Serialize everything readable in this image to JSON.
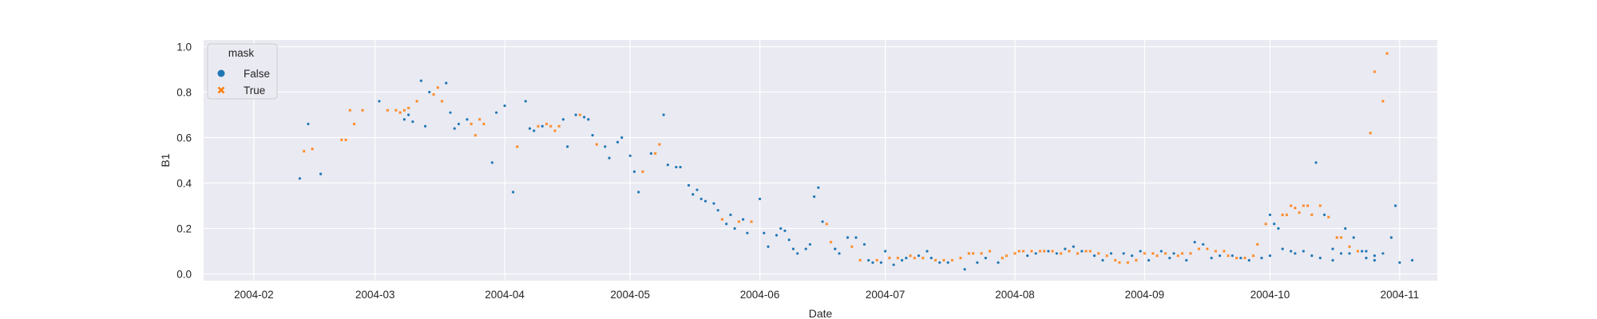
{
  "chart_data": {
    "type": "scatter",
    "xlabel": "Date",
    "ylabel": "B1",
    "xlim": [
      "2004-01-20",
      "2004-11-10"
    ],
    "ylim": [
      -0.03,
      1.03
    ],
    "x_ticks": [
      "2004-02",
      "2004-03",
      "2004-04",
      "2004-05",
      "2004-06",
      "2004-07",
      "2004-08",
      "2004-09",
      "2004-10",
      "2004-11"
    ],
    "y_ticks": [
      "0.0",
      "0.2",
      "0.4",
      "0.6",
      "0.8",
      "1.0"
    ],
    "grid": true,
    "legend": {
      "title": "mask",
      "placement": "top-left",
      "entries": [
        {
          "label": "False",
          "marker": "circle",
          "color": "#1f77b4"
        },
        {
          "label": "True",
          "marker": "x",
          "color": "#ff7f0e"
        }
      ]
    },
    "colors": {
      "background": "#eaeaf2",
      "grid": "#ffffff",
      "false": "#1f77b4",
      "true": "#ff7f0e"
    },
    "series": [
      {
        "name": "False",
        "color": "#1f77b4",
        "points": [
          [
            "2004-02-12",
            0.42
          ],
          [
            "2004-02-14",
            0.66
          ],
          [
            "2004-02-17",
            0.44
          ],
          [
            "2004-03-02",
            0.76
          ],
          [
            "2004-03-08",
            0.68
          ],
          [
            "2004-03-09",
            0.7
          ],
          [
            "2004-03-10",
            0.67
          ],
          [
            "2004-03-12",
            0.85
          ],
          [
            "2004-03-13",
            0.65
          ],
          [
            "2004-03-14",
            0.8
          ],
          [
            "2004-03-18",
            0.84
          ],
          [
            "2004-03-19",
            0.71
          ],
          [
            "2004-03-20",
            0.64
          ],
          [
            "2004-03-21",
            0.66
          ],
          [
            "2004-03-23",
            0.68
          ],
          [
            "2004-03-29",
            0.49
          ],
          [
            "2004-03-30",
            0.71
          ],
          [
            "2004-04-01",
            0.74
          ],
          [
            "2004-04-03",
            0.36
          ],
          [
            "2004-04-06",
            0.76
          ],
          [
            "2004-04-07",
            0.64
          ],
          [
            "2004-04-08",
            0.63
          ],
          [
            "2004-04-10",
            0.65
          ],
          [
            "2004-04-15",
            0.68
          ],
          [
            "2004-04-16",
            0.56
          ],
          [
            "2004-04-18",
            0.7
          ],
          [
            "2004-04-20",
            0.69
          ],
          [
            "2004-04-21",
            0.68
          ],
          [
            "2004-04-22",
            0.61
          ],
          [
            "2004-04-25",
            0.56
          ],
          [
            "2004-04-26",
            0.51
          ],
          [
            "2004-04-28",
            0.58
          ],
          [
            "2004-04-29",
            0.6
          ],
          [
            "2004-05-01",
            0.52
          ],
          [
            "2004-05-02",
            0.45
          ],
          [
            "2004-05-03",
            0.36
          ],
          [
            "2004-05-06",
            0.53
          ],
          [
            "2004-05-09",
            0.7
          ],
          [
            "2004-05-10",
            0.48
          ],
          [
            "2004-05-12",
            0.47
          ],
          [
            "2004-05-13",
            0.47
          ],
          [
            "2004-05-15",
            0.39
          ],
          [
            "2004-05-16",
            0.35
          ],
          [
            "2004-05-17",
            0.37
          ],
          [
            "2004-05-18",
            0.33
          ],
          [
            "2004-05-19",
            0.32
          ],
          [
            "2004-05-21",
            0.31
          ],
          [
            "2004-05-22",
            0.28
          ],
          [
            "2004-05-24",
            0.22
          ],
          [
            "2004-05-25",
            0.26
          ],
          [
            "2004-05-26",
            0.2
          ],
          [
            "2004-05-28",
            0.24
          ],
          [
            "2004-05-29",
            0.18
          ],
          [
            "2004-06-01",
            0.33
          ],
          [
            "2004-06-02",
            0.18
          ],
          [
            "2004-06-03",
            0.12
          ],
          [
            "2004-06-05",
            0.17
          ],
          [
            "2004-06-06",
            0.2
          ],
          [
            "2004-06-07",
            0.19
          ],
          [
            "2004-06-08",
            0.15
          ],
          [
            "2004-06-09",
            0.11
          ],
          [
            "2004-06-10",
            0.09
          ],
          [
            "2004-06-12",
            0.11
          ],
          [
            "2004-06-13",
            0.13
          ],
          [
            "2004-06-14",
            0.34
          ],
          [
            "2004-06-15",
            0.38
          ],
          [
            "2004-06-16",
            0.23
          ],
          [
            "2004-06-19",
            0.11
          ],
          [
            "2004-06-20",
            0.09
          ],
          [
            "2004-06-22",
            0.16
          ],
          [
            "2004-06-24",
            0.16
          ],
          [
            "2004-06-26",
            0.13
          ],
          [
            "2004-06-27",
            0.06
          ],
          [
            "2004-06-28",
            0.05
          ],
          [
            "2004-06-30",
            0.05
          ],
          [
            "2004-07-01",
            0.1
          ],
          [
            "2004-07-03",
            0.04
          ],
          [
            "2004-07-05",
            0.06
          ],
          [
            "2004-07-06",
            0.07
          ],
          [
            "2004-07-09",
            0.08
          ],
          [
            "2004-07-11",
            0.1
          ],
          [
            "2004-07-12",
            0.07
          ],
          [
            "2004-07-14",
            0.05
          ],
          [
            "2004-07-16",
            0.05
          ],
          [
            "2004-07-20",
            0.02
          ],
          [
            "2004-07-23",
            0.05
          ],
          [
            "2004-07-25",
            0.07
          ],
          [
            "2004-07-28",
            0.05
          ],
          [
            "2004-08-04",
            0.08
          ],
          [
            "2004-08-06",
            0.09
          ],
          [
            "2004-08-09",
            0.1
          ],
          [
            "2004-08-11",
            0.09
          ],
          [
            "2004-08-13",
            0.11
          ],
          [
            "2004-08-15",
            0.12
          ],
          [
            "2004-08-17",
            0.1
          ],
          [
            "2004-08-20",
            0.08
          ],
          [
            "2004-08-22",
            0.06
          ],
          [
            "2004-08-24",
            0.09
          ],
          [
            "2004-08-27",
            0.09
          ],
          [
            "2004-08-29",
            0.08
          ],
          [
            "2004-08-31",
            0.1
          ],
          [
            "2004-09-02",
            0.06
          ],
          [
            "2004-09-05",
            0.1
          ],
          [
            "2004-09-07",
            0.07
          ],
          [
            "2004-09-08",
            0.09
          ],
          [
            "2004-09-11",
            0.06
          ],
          [
            "2004-09-13",
            0.14
          ],
          [
            "2004-09-15",
            0.13
          ],
          [
            "2004-09-17",
            0.07
          ],
          [
            "2004-09-19",
            0.08
          ],
          [
            "2004-09-22",
            0.08
          ],
          [
            "2004-09-24",
            0.07
          ],
          [
            "2004-09-26",
            0.06
          ],
          [
            "2004-09-29",
            0.07
          ],
          [
            "2004-10-01",
            0.08
          ],
          [
            "2004-10-04",
            0.11
          ],
          [
            "2004-10-06",
            0.1
          ],
          [
            "2004-10-07",
            0.09
          ],
          [
            "2004-10-09",
            0.1
          ],
          [
            "2004-10-11",
            0.08
          ],
          [
            "2004-10-13",
            0.07
          ],
          [
            "2004-10-16",
            0.06
          ],
          [
            "2004-10-18",
            0.09
          ],
          [
            "2004-10-20",
            0.09
          ],
          [
            "2004-10-23",
            0.1
          ],
          [
            "2004-10-24",
            0.07
          ],
          [
            "2004-10-26",
            0.08
          ],
          [
            "2004-10-28",
            0.09
          ],
          [
            "2004-10-30",
            0.16
          ],
          [
            "2004-11-01",
            0.05
          ],
          [
            "2004-11-04",
            0.06
          ],
          [
            "2004-10-01",
            0.26
          ],
          [
            "2004-10-02",
            0.22
          ],
          [
            "2004-10-03",
            0.2
          ],
          [
            "2004-10-12",
            0.49
          ],
          [
            "2004-10-14",
            0.26
          ],
          [
            "2004-10-16",
            0.11
          ],
          [
            "2004-10-19",
            0.2
          ],
          [
            "2004-10-21",
            0.16
          ],
          [
            "2004-10-24",
            0.1
          ],
          [
            "2004-10-26",
            0.06
          ],
          [
            "2004-10-31",
            0.3
          ]
        ]
      },
      {
        "name": "True",
        "color": "#ff7f0e",
        "points": [
          [
            "2004-02-13",
            0.54
          ],
          [
            "2004-02-15",
            0.55
          ],
          [
            "2004-02-22",
            0.59
          ],
          [
            "2004-02-23",
            0.59
          ],
          [
            "2004-02-24",
            0.72
          ],
          [
            "2004-02-25",
            0.66
          ],
          [
            "2004-02-27",
            0.72
          ],
          [
            "2004-03-04",
            0.72
          ],
          [
            "2004-03-06",
            0.72
          ],
          [
            "2004-03-07",
            0.71
          ],
          [
            "2004-03-08",
            0.72
          ],
          [
            "2004-03-09",
            0.73
          ],
          [
            "2004-03-11",
            0.76
          ],
          [
            "2004-03-15",
            0.79
          ],
          [
            "2004-03-16",
            0.82
          ],
          [
            "2004-03-17",
            0.76
          ],
          [
            "2004-03-24",
            0.66
          ],
          [
            "2004-03-25",
            0.61
          ],
          [
            "2004-03-26",
            0.68
          ],
          [
            "2004-03-27",
            0.66
          ],
          [
            "2004-04-04",
            0.56
          ],
          [
            "2004-04-09",
            0.65
          ],
          [
            "2004-04-11",
            0.66
          ],
          [
            "2004-04-12",
            0.65
          ],
          [
            "2004-04-13",
            0.63
          ],
          [
            "2004-04-14",
            0.65
          ],
          [
            "2004-04-19",
            0.7
          ],
          [
            "2004-04-23",
            0.57
          ],
          [
            "2004-05-04",
            0.45
          ],
          [
            "2004-05-07",
            0.53
          ],
          [
            "2004-05-08",
            0.57
          ],
          [
            "2004-05-23",
            0.24
          ],
          [
            "2004-05-27",
            0.23
          ],
          [
            "2004-05-30",
            0.23
          ],
          [
            "2004-06-17",
            0.22
          ],
          [
            "2004-06-18",
            0.14
          ],
          [
            "2004-06-23",
            0.12
          ],
          [
            "2004-06-25",
            0.06
          ],
          [
            "2004-06-29",
            0.06
          ],
          [
            "2004-07-02",
            0.07
          ],
          [
            "2004-07-04",
            0.07
          ],
          [
            "2004-07-07",
            0.08
          ],
          [
            "2004-07-08",
            0.07
          ],
          [
            "2004-07-10",
            0.07
          ],
          [
            "2004-07-13",
            0.06
          ],
          [
            "2004-07-15",
            0.06
          ],
          [
            "2004-07-17",
            0.06
          ],
          [
            "2004-07-19",
            0.07
          ],
          [
            "2004-07-21",
            0.09
          ],
          [
            "2004-07-22",
            0.09
          ],
          [
            "2004-07-24",
            0.09
          ],
          [
            "2004-07-26",
            0.1
          ],
          [
            "2004-07-29",
            0.07
          ],
          [
            "2004-07-30",
            0.08
          ],
          [
            "2004-08-01",
            0.09
          ],
          [
            "2004-08-02",
            0.1
          ],
          [
            "2004-08-03",
            0.1
          ],
          [
            "2004-08-05",
            0.1
          ],
          [
            "2004-08-07",
            0.1
          ],
          [
            "2004-08-08",
            0.1
          ],
          [
            "2004-08-10",
            0.1
          ],
          [
            "2004-08-12",
            0.09
          ],
          [
            "2004-08-14",
            0.1
          ],
          [
            "2004-08-16",
            0.09
          ],
          [
            "2004-08-18",
            0.1
          ],
          [
            "2004-08-19",
            0.1
          ],
          [
            "2004-08-21",
            0.09
          ],
          [
            "2004-08-23",
            0.08
          ],
          [
            "2004-08-25",
            0.06
          ],
          [
            "2004-08-26",
            0.05
          ],
          [
            "2004-08-28",
            0.05
          ],
          [
            "2004-08-30",
            0.06
          ],
          [
            "2004-09-01",
            0.09
          ],
          [
            "2004-09-03",
            0.09
          ],
          [
            "2004-09-04",
            0.08
          ],
          [
            "2004-09-06",
            0.09
          ],
          [
            "2004-09-09",
            0.08
          ],
          [
            "2004-09-10",
            0.09
          ],
          [
            "2004-09-12",
            0.09
          ],
          [
            "2004-09-14",
            0.11
          ],
          [
            "2004-09-16",
            0.11
          ],
          [
            "2004-09-18",
            0.1
          ],
          [
            "2004-09-20",
            0.1
          ],
          [
            "2004-09-21",
            0.08
          ],
          [
            "2004-09-23",
            0.07
          ],
          [
            "2004-09-25",
            0.07
          ],
          [
            "2004-09-27",
            0.08
          ],
          [
            "2004-09-28",
            0.13
          ],
          [
            "2004-09-30",
            0.22
          ],
          [
            "2004-10-04",
            0.26
          ],
          [
            "2004-10-05",
            0.26
          ],
          [
            "2004-10-06",
            0.3
          ],
          [
            "2004-10-07",
            0.29
          ],
          [
            "2004-10-08",
            0.27
          ],
          [
            "2004-10-09",
            0.3
          ],
          [
            "2004-10-10",
            0.3
          ],
          [
            "2004-10-11",
            0.26
          ],
          [
            "2004-10-13",
            0.3
          ],
          [
            "2004-10-15",
            0.25
          ],
          [
            "2004-10-17",
            0.16
          ],
          [
            "2004-10-18",
            0.16
          ],
          [
            "2004-10-20",
            0.12
          ],
          [
            "2004-10-22",
            0.1
          ],
          [
            "2004-10-25",
            0.62
          ],
          [
            "2004-10-26",
            0.89
          ],
          [
            "2004-10-28",
            0.76
          ],
          [
            "2004-10-29",
            0.97
          ]
        ]
      }
    ]
  }
}
